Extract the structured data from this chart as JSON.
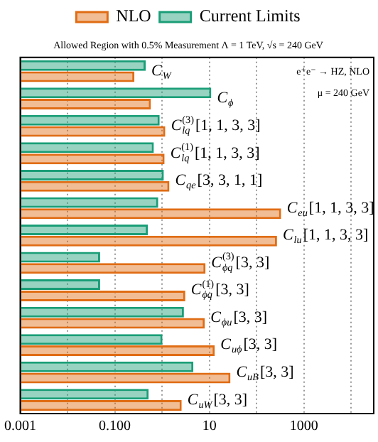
{
  "chart_data": {
    "type": "bar",
    "orientation": "horizontal",
    "subtitle": "Allowed Region with 0.5% Measurement Λ = 1 TeV, √s = 240 GeV",
    "categories": [
      "C$_{W}$",
      "C$_{ϕ}$",
      "C$_{lq}$$^{(3)}$[1, 1, 3, 3]",
      "C$_{lq}$$^{(1)}$[1, 1, 3, 3]",
      "C$_{qe}$[3, 3, 1, 1]",
      "C$_{eu}$[1, 1, 3, 3]",
      "C$_{lu}$[1, 1, 3, 3]",
      "C$_{ϕq}$$^{(3)}$[3, 3]",
      "C$_{ϕq}$$^{(1)}$[3, 3]",
      "C$_{ϕu}$[3, 3]",
      "C$_{uϕ}$[3, 3]",
      "C$_{uB}$[3, 3]",
      "C$_{uW}$[3, 3]"
    ],
    "series": [
      {
        "name": "NLO",
        "color": "#e06c14",
        "values": [
          0.26,
          0.58,
          1.17,
          1.13,
          1.43,
          330,
          270,
          8.3,
          3.1,
          8.0,
          13,
          28,
          2.6
        ]
      },
      {
        "name": "Current Limits",
        "color": "#1a9e77",
        "values": [
          0.45,
          11,
          0.89,
          0.67,
          1.09,
          0.83,
          0.5,
          0.049,
          0.049,
          2.9,
          1.02,
          4.6,
          0.52
        ]
      }
    ],
    "log": "x",
    "xlim": [
      0.001,
      30000
    ],
    "xticks": [
      0.001,
      {
        "value": 0.01,
        "label": null
      },
      {
        "value": 0.1,
        "label": "0.100"
      },
      {
        "value": 1,
        "label": null
      },
      10,
      {
        "value": 100,
        "label": null
      },
      1000,
      {
        "value": 10000,
        "label": null
      }
    ],
    "grid": "x",
    "legend": "top",
    "tick_labels": "x",
    "annotations": [
      "e⁺e⁻ → HZ, NLO",
      "μ = 240 GeV"
    ]
  }
}
